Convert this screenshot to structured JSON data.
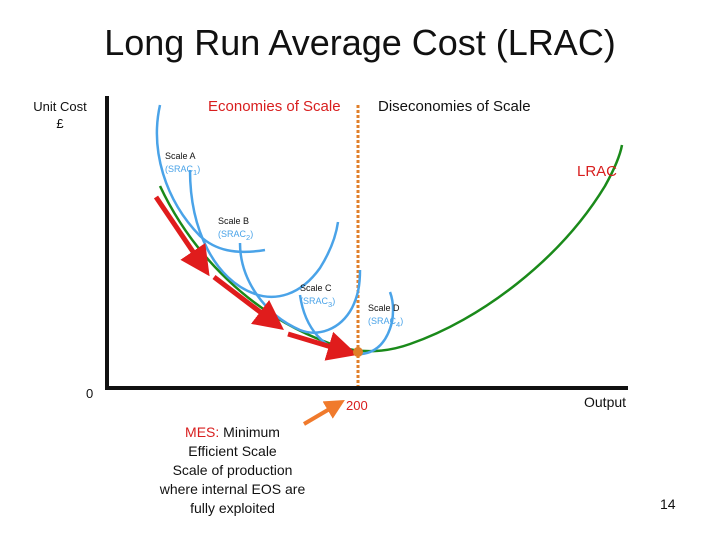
{
  "title": "Long Run Average Cost (LRAC)",
  "axes": {
    "ylabel_line1": "Unit Cost",
    "ylabel_line2": "£",
    "origin": "0",
    "xlabel": "Output"
  },
  "regions": {
    "economies": "Economies of Scale",
    "diseconomies": "Diseconomies of Scale"
  },
  "curve_label": "LRAC",
  "srac": [
    {
      "name": "Scale A",
      "sub": "1"
    },
    {
      "name": "Scale B",
      "sub": "2"
    },
    {
      "name": "Scale C",
      "sub": "3"
    },
    {
      "name": "Scale D",
      "sub": "4"
    }
  ],
  "srac_prefix": "(SRAC",
  "srac_suffix": ")",
  "mes": {
    "value": "200",
    "abbr": "MES:",
    "line1_rest": " Minimum",
    "line2": "Efficient Scale",
    "line3": "Scale of production",
    "line4": "where internal EOS are",
    "line5": "fully exploited"
  },
  "page_number": "14",
  "colors": {
    "lrac": "#1a8a1a",
    "srac": "#4aa3e8",
    "eos_arrows": "#e01c1c",
    "divider": "#e07f2a",
    "mes_arrow": "#f07a2c",
    "axis": "#111111"
  }
}
